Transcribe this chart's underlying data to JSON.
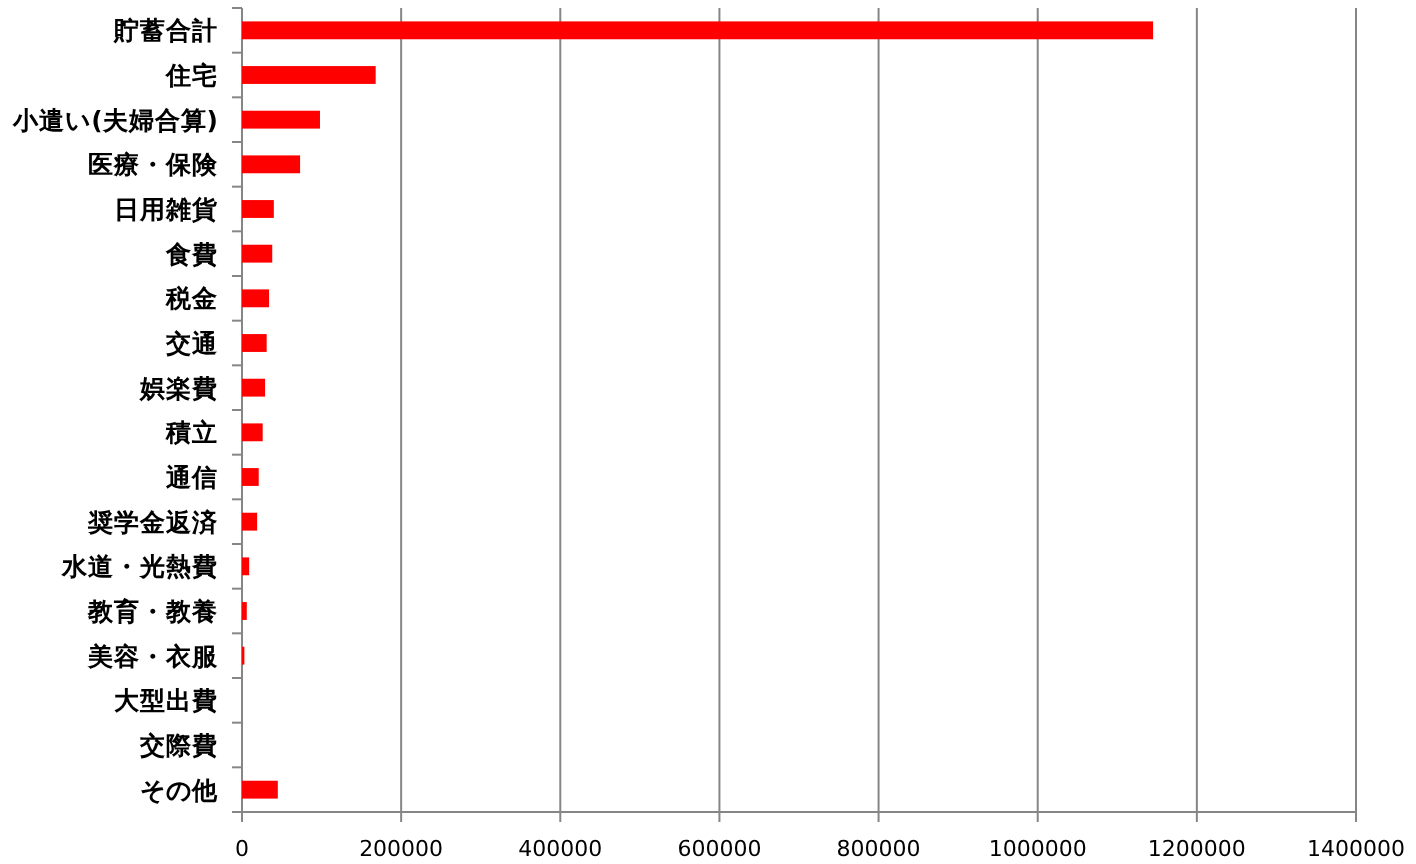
{
  "chart_data": {
    "type": "bar",
    "orientation": "horizontal",
    "categories": [
      "貯蓄合計",
      "住宅",
      "小遣い(夫婦合算)",
      "医療・保険",
      "日用雑貨",
      "食費",
      "税金",
      "交通",
      "娯楽費",
      "積立",
      "通信",
      "奨学金返済",
      "水道・光熱費",
      "教育・教養",
      "美容・衣服",
      "大型出費",
      "交際費",
      "その他"
    ],
    "values": [
      1145000,
      168000,
      98000,
      73000,
      40000,
      38000,
      34000,
      31000,
      29000,
      26000,
      21000,
      19000,
      9000,
      6000,
      3000,
      0,
      0,
      45000
    ],
    "color": "#ff0000",
    "xlim": [
      0,
      1400000
    ],
    "xticks": [
      0,
      200000,
      400000,
      600000,
      800000,
      1000000,
      1200000,
      1400000
    ],
    "grid": "x"
  }
}
